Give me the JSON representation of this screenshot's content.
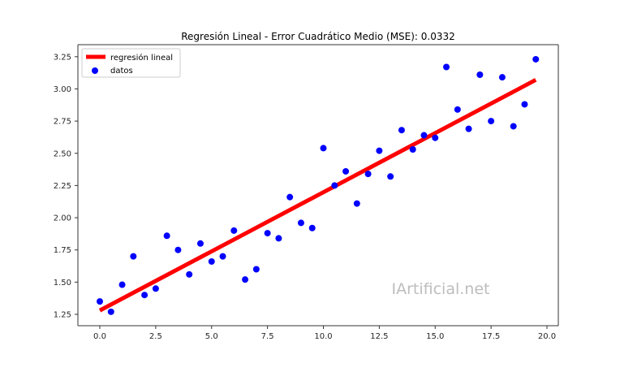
{
  "chart_data": {
    "type": "scatter",
    "title": "Regresión Lineal - Error Cuadrático Medio (MSE): 0.0332",
    "xlabel": "",
    "ylabel": "",
    "xlim": [
      -1.0,
      20.5
    ],
    "ylim": [
      1.16,
      3.33
    ],
    "grid": false,
    "legend_position": "upper left",
    "x_ticks": [
      0.0,
      2.5,
      5.0,
      7.5,
      10.0,
      12.5,
      15.0,
      17.5,
      20.0
    ],
    "x_tick_labels": [
      "0.0",
      "2.5",
      "5.0",
      "7.5",
      "10.0",
      "12.5",
      "15.0",
      "17.5",
      "20.0"
    ],
    "y_ticks": [
      1.25,
      1.5,
      1.75,
      2.0,
      2.25,
      2.5,
      2.75,
      3.0,
      3.25
    ],
    "y_tick_labels": [
      "1.25",
      "1.50",
      "1.75",
      "2.00",
      "2.25",
      "2.50",
      "2.75",
      "3.00",
      "3.25"
    ],
    "series": [
      {
        "name": "regresión lineal",
        "kind": "line",
        "color": "#ff0000",
        "x": [
          0.0,
          19.5
        ],
        "y": [
          1.28,
          3.07
        ]
      },
      {
        "name": "datos",
        "kind": "scatter",
        "color": "#0000ff",
        "x": [
          0.0,
          0.5,
          1.0,
          1.5,
          2.0,
          2.5,
          3.0,
          3.5,
          4.0,
          4.5,
          5.0,
          5.5,
          6.0,
          6.5,
          7.0,
          7.5,
          8.0,
          8.5,
          9.0,
          9.5,
          10.0,
          10.5,
          11.0,
          11.5,
          12.0,
          12.5,
          13.0,
          13.5,
          14.0,
          14.5,
          15.0,
          15.5,
          16.0,
          16.5,
          17.0,
          17.5,
          18.0,
          18.5,
          19.0,
          19.5
        ],
        "y": [
          1.35,
          1.27,
          1.48,
          1.7,
          1.4,
          1.45,
          1.86,
          1.75,
          1.56,
          1.8,
          1.66,
          1.7,
          1.9,
          1.52,
          1.6,
          1.88,
          1.84,
          2.16,
          1.96,
          1.92,
          2.54,
          2.25,
          2.36,
          2.11,
          2.34,
          2.52,
          2.32,
          2.68,
          2.53,
          2.64,
          2.62,
          3.17,
          2.84,
          2.69,
          3.11,
          2.75,
          3.09,
          2.71,
          2.88,
          3.23
        ]
      }
    ],
    "annotations": [
      {
        "text": "IArtificial.net",
        "kind": "watermark",
        "x": 17.0,
        "y": 1.45
      }
    ]
  }
}
